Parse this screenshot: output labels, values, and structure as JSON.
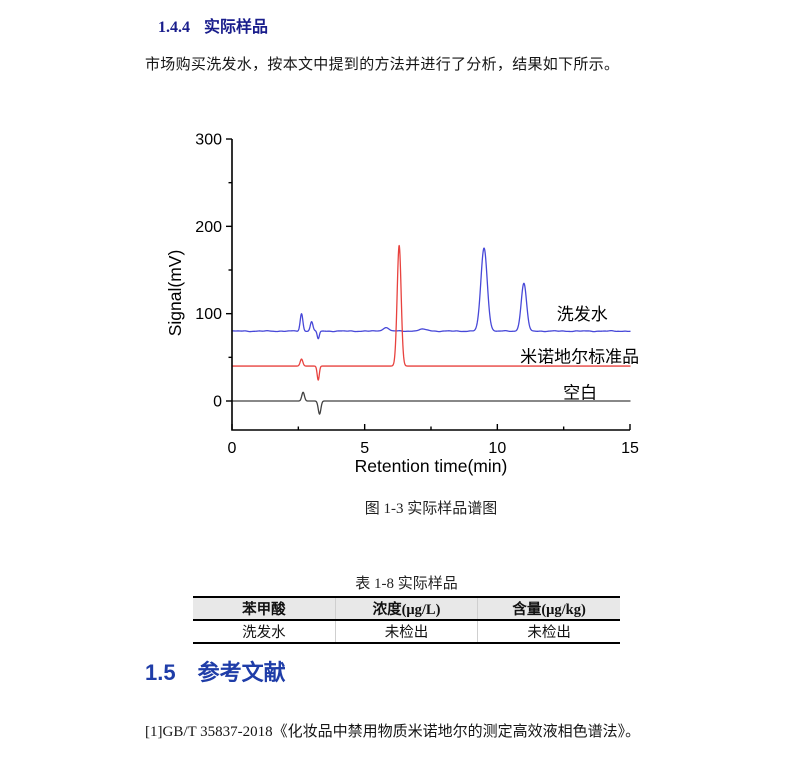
{
  "section_144": {
    "number": "1.4.4",
    "title": "实际样品"
  },
  "intro_paragraph": "市场购买洗发水，按本文中提到的方法并进行了分析，结果如下所示。",
  "figure_caption": "图 1-3  实际样品谱图",
  "table_caption": "表 1-8  实际样品",
  "table": {
    "headers": [
      "苯甲酸",
      "浓度(μg/L)",
      "含量(μg/kg)"
    ],
    "rows": [
      [
        "洗发水",
        "未检出",
        "未检出"
      ]
    ]
  },
  "section_15": {
    "number": "1.5",
    "title": "参考文献"
  },
  "reference": "[1]GB/T 35837-2018《化妆品中禁用物质米诺地尔的测定高效液相色谱法》。",
  "chart_data": {
    "type": "line",
    "title": "",
    "xlabel": "Retention time(min)",
    "ylabel": "Signal(mV)",
    "xlim": [
      0,
      15
    ],
    "ylim": [
      -33,
      300
    ],
    "x_major_ticks": [
      0,
      5,
      10,
      15
    ],
    "x_minor_ticks": [
      2.5,
      7.5,
      12.5
    ],
    "y_major_ticks": [
      0,
      100,
      200,
      300
    ],
    "y_minor_ticks": [
      50,
      150,
      250
    ],
    "grid": false,
    "legend_position": "inline-right",
    "axis_color": "#000000",
    "series": [
      {
        "name": "洗发水",
        "color": "#4748d8",
        "baseline": 80,
        "noise": 0.6,
        "peaks": [
          {
            "t": 2.62,
            "h": 20,
            "w": 0.05
          },
          {
            "t": 3.0,
            "h": 11,
            "w": 0.05
          },
          {
            "t": 3.25,
            "h": -9,
            "w": 0.04
          },
          {
            "t": 5.8,
            "h": 4,
            "w": 0.12
          },
          {
            "t": 7.2,
            "h": 2,
            "w": 0.18
          },
          {
            "t": 9.5,
            "h": 95,
            "w": 0.12
          },
          {
            "t": 11.0,
            "h": 55,
            "w": 0.1
          }
        ],
        "label": {
          "text": "洗发水",
          "t": 13.2,
          "mv": 93
        }
      },
      {
        "name": "米诺地尔标准品",
        "color": "#e8423e",
        "baseline": 40,
        "noise": 0,
        "peaks": [
          {
            "t": 2.62,
            "h": 8,
            "w": 0.05
          },
          {
            "t": 3.25,
            "h": -16,
            "w": 0.04
          },
          {
            "t": 6.3,
            "h": 138,
            "w": 0.075
          }
        ],
        "label": {
          "text": "米诺地尔标准品",
          "t": 13.1,
          "mv": 44
        }
      },
      {
        "name": "空白",
        "color": "#404040",
        "baseline": 0,
        "noise": 0,
        "peaks": [
          {
            "t": 2.68,
            "h": 10,
            "w": 0.05
          },
          {
            "t": 3.3,
            "h": -15,
            "w": 0.05
          }
        ],
        "label": {
          "text": "空白",
          "t": 13.12,
          "mv": 3
        }
      }
    ]
  }
}
